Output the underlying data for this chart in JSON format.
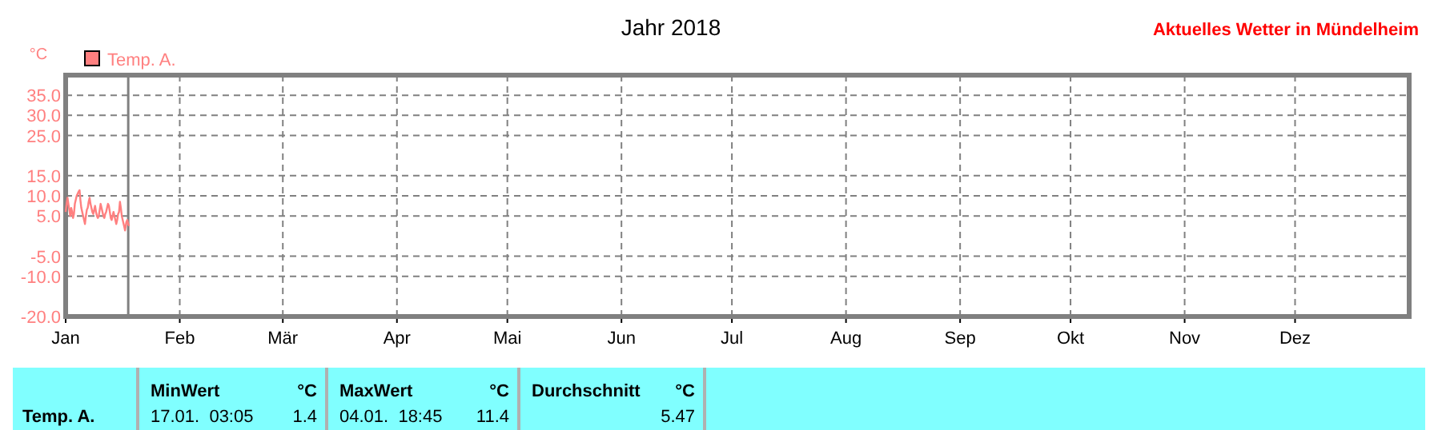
{
  "chart_data": {
    "type": "line",
    "title": "Jahr 2018",
    "subtitle": "Aktuelles Wetter in Mündelheim",
    "ylabel": "°C",
    "x": [
      "2018-01-01T00:00",
      "2018-01-01T06:00",
      "2018-01-01T12:00",
      "2018-01-01T18:00",
      "2018-01-02T00:00",
      "2018-01-02T06:00",
      "2018-01-02T12:00",
      "2018-01-02T18:00",
      "2018-01-03T00:00",
      "2018-01-03T06:00",
      "2018-01-03T12:00",
      "2018-01-03T18:00",
      "2018-01-04T00:00",
      "2018-01-04T06:00",
      "2018-01-04T12:00",
      "2018-01-04T18:45",
      "2018-01-05T00:00",
      "2018-01-05T06:00",
      "2018-01-05T12:00",
      "2018-01-05T18:00",
      "2018-01-06T00:00",
      "2018-01-06T06:00",
      "2018-01-06T12:00",
      "2018-01-06T18:00",
      "2018-01-07T00:00",
      "2018-01-07T06:00",
      "2018-01-07T12:00",
      "2018-01-07T18:00",
      "2018-01-08T00:00",
      "2018-01-08T06:00",
      "2018-01-08T12:00",
      "2018-01-08T18:00",
      "2018-01-09T00:00",
      "2018-01-09T06:00",
      "2018-01-09T12:00",
      "2018-01-09T18:00",
      "2018-01-10T00:00",
      "2018-01-10T06:00",
      "2018-01-10T12:00",
      "2018-01-10T18:00",
      "2018-01-11T00:00",
      "2018-01-11T06:00",
      "2018-01-11T12:00",
      "2018-01-11T18:00",
      "2018-01-12T00:00",
      "2018-01-12T06:00",
      "2018-01-12T12:00",
      "2018-01-12T18:00",
      "2018-01-13T00:00",
      "2018-01-13T06:00",
      "2018-01-13T12:00",
      "2018-01-13T18:00",
      "2018-01-14T00:00",
      "2018-01-14T06:00",
      "2018-01-14T12:00",
      "2018-01-14T18:00",
      "2018-01-15T00:00",
      "2018-01-15T06:00",
      "2018-01-15T12:00",
      "2018-01-15T18:00",
      "2018-01-16T00:00",
      "2018-01-16T06:00",
      "2018-01-16T12:00",
      "2018-01-16T18:00",
      "2018-01-17T00:00",
      "2018-01-17T03:05",
      "2018-01-17T12:00",
      "2018-01-17T18:00",
      "2018-01-18T00:00",
      "2018-01-18T06:00"
    ],
    "series": [
      {
        "name": "Temp. A.",
        "color": "#ff8080",
        "values": [
          6,
          8,
          9.5,
          8,
          6.5,
          5,
          7,
          6,
          4.5,
          5.5,
          8,
          9,
          10,
          10.5,
          11,
          11.4,
          9,
          7,
          6,
          5,
          4,
          3,
          5,
          6.5,
          7,
          8.5,
          9.5,
          8,
          7,
          6,
          5.5,
          6.5,
          7.5,
          6,
          5,
          4.5,
          5,
          6.5,
          8,
          7,
          6,
          5,
          4.5,
          5.5,
          6,
          7,
          8,
          7.5,
          6,
          4.5,
          4,
          5,
          6,
          5,
          4,
          3,
          4,
          5.5,
          6,
          8.5,
          7,
          5,
          4,
          3,
          2,
          1.4,
          3.5,
          4,
          3,
          2.5
        ]
      }
    ],
    "xlim": [
      "2018-01-01",
      "2019-01-01"
    ],
    "xticks": [
      {
        "value": "2018-01-01",
        "label": "Jan"
      },
      {
        "value": "2018-02-01",
        "label": "Feb"
      },
      {
        "value": "2018-03-01",
        "label": "Mär"
      },
      {
        "value": "2018-04-01",
        "label": "Apr"
      },
      {
        "value": "2018-05-01",
        "label": "Mai"
      },
      {
        "value": "2018-06-01",
        "label": "Jun"
      },
      {
        "value": "2018-07-01",
        "label": "Jul"
      },
      {
        "value": "2018-08-01",
        "label": "Aug"
      },
      {
        "value": "2018-09-01",
        "label": "Sep"
      },
      {
        "value": "2018-10-01",
        "label": "Okt"
      },
      {
        "value": "2018-11-01",
        "label": "Nov"
      },
      {
        "value": "2018-12-01",
        "label": "Dez"
      }
    ],
    "ylim": [
      -20,
      40
    ],
    "yticks": [
      {
        "value": -20,
        "label": "-20.0"
      },
      {
        "value": -10,
        "label": "-10.0"
      },
      {
        "value": -5,
        "label": "-5.0"
      },
      {
        "value": 5,
        "label": "5.0"
      },
      {
        "value": 10,
        "label": "10.0"
      },
      {
        "value": 15,
        "label": "15.0"
      },
      {
        "value": 25,
        "label": "25.0"
      },
      {
        "value": 30,
        "label": "30.0"
      },
      {
        "value": 35,
        "label": "35.0"
      }
    ],
    "ref_lines": [
      {
        "axis": "x",
        "value": "2018-01-18",
        "color": "#808080"
      }
    ],
    "grid": true,
    "legend": "top left",
    "line_style": "solid",
    "marker": "none",
    "annotations": [
      "MinWert",
      "°C",
      "17.01.  03:05",
      "1.4",
      "MaxWert",
      "°C",
      "04.01.  18:45",
      "11.4",
      "Durchschnitt",
      "°C",
      "5.47"
    ]
  }
}
